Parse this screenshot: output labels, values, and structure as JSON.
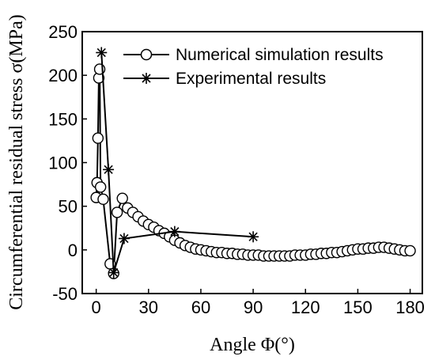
{
  "chart_data": {
    "type": "line",
    "xlabel": "Angle Φ(°)",
    "ylabel": "Circumferential residual stress σ(MPa)",
    "xlim": [
      -8,
      187
    ],
    "ylim": [
      -50,
      250
    ],
    "xticks": [
      0,
      30,
      60,
      90,
      120,
      150,
      180
    ],
    "yticks": [
      -50,
      0,
      50,
      100,
      150,
      200,
      250
    ],
    "legend_position": "top-center",
    "series": [
      {
        "name": "Numerical simulation results",
        "marker": "circle",
        "x": [
          0,
          0.5,
          1,
          1.5,
          2,
          2.5,
          4,
          8,
          10,
          12,
          15,
          18,
          21,
          24,
          27,
          30,
          33,
          36,
          39,
          42,
          45,
          48,
          51,
          54,
          57,
          60,
          63,
          66,
          69,
          72,
          75,
          78,
          81,
          84,
          87,
          90,
          93,
          96,
          99,
          102,
          105,
          108,
          111,
          114,
          117,
          120,
          123,
          126,
          129,
          132,
          135,
          138,
          141,
          144,
          147,
          150,
          153,
          156,
          159,
          162,
          165,
          168,
          171,
          174,
          177,
          180
        ],
        "y": [
          60,
          77,
          128,
          197,
          207,
          72,
          58,
          -16,
          -27,
          43,
          59,
          48,
          43,
          38,
          33,
          29,
          26,
          22,
          19,
          15,
          11,
          8,
          5,
          3,
          1,
          0,
          -1,
          -2,
          -3,
          -3,
          -4,
          -4,
          -5,
          -5,
          -6,
          -6,
          -6,
          -7,
          -7,
          -7,
          -7,
          -7,
          -7,
          -6,
          -6,
          -6,
          -5,
          -5,
          -4,
          -4,
          -3,
          -3,
          -2,
          -1,
          0,
          1,
          1,
          2,
          2,
          3,
          3,
          2,
          1,
          0,
          -1,
          -1
        ]
      },
      {
        "name": "Experimental results",
        "marker": "asterisk",
        "x": [
          3,
          7,
          10,
          16,
          45,
          90
        ],
        "y": [
          226,
          92,
          -26,
          13,
          21,
          15
        ]
      }
    ]
  }
}
